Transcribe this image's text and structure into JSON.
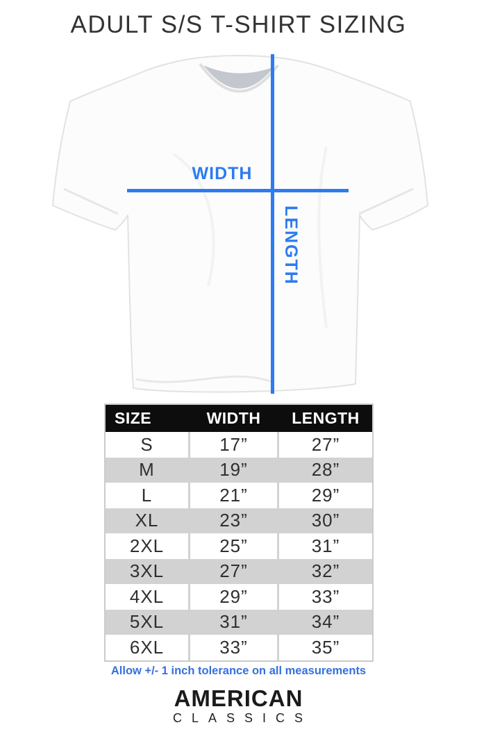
{
  "page": {
    "title": "ADULT S/S T-SHIRT SIZING"
  },
  "colors": {
    "measure_blue": "#2c7bf2",
    "note_blue": "#3570dd",
    "header_bg": "#0d0d0d",
    "header_text": "#ffffff",
    "row_alt_gray": "#d2d2d2",
    "table_border": "#cbcbcb"
  },
  "diagram": {
    "width_label": "WIDTH",
    "length_label": "LENGTH"
  },
  "size_table": {
    "headers": [
      "SIZE",
      "WIDTH",
      "LENGTH"
    ],
    "rows": [
      [
        "S",
        "17”",
        "27”"
      ],
      [
        "M",
        "19”",
        "28”"
      ],
      [
        "L",
        "21”",
        "29”"
      ],
      [
        "XL",
        "23”",
        "30”"
      ],
      [
        "2XL",
        "25”",
        "31”"
      ],
      [
        "3XL",
        "27”",
        "32”"
      ],
      [
        "4XL",
        "29”",
        "33”"
      ],
      [
        "5XL",
        "31”",
        "34”"
      ],
      [
        "6XL",
        "33”",
        "35”"
      ]
    ]
  },
  "note": "Allow +/- 1 inch tolerance on all measurements",
  "brand": {
    "line1": "AMERICAN",
    "line2": "CLASSICS"
  },
  "chart_data": {
    "type": "table",
    "title": "ADULT S/S T-SHIRT SIZING",
    "columns": [
      "SIZE",
      "WIDTH",
      "LENGTH"
    ],
    "unit": "inches",
    "rows": [
      [
        "S",
        17,
        27
      ],
      [
        "M",
        19,
        28
      ],
      [
        "L",
        21,
        29
      ],
      [
        "XL",
        23,
        30
      ],
      [
        "2XL",
        25,
        31
      ],
      [
        "3XL",
        27,
        32
      ],
      [
        "4XL",
        29,
        33
      ],
      [
        "5XL",
        31,
        34
      ],
      [
        "6XL",
        33,
        35
      ]
    ],
    "footnote": "Allow +/- 1 inch tolerance on all measurements"
  }
}
